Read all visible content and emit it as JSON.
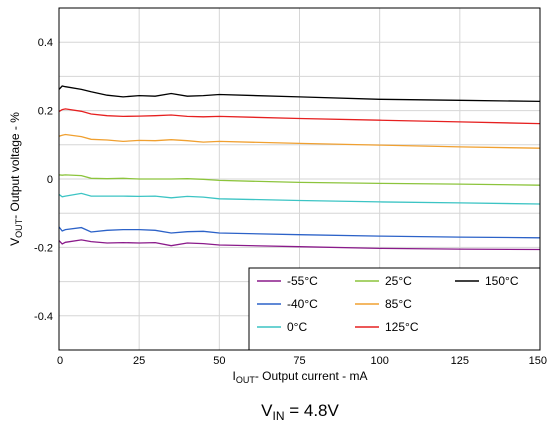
{
  "chart_data": {
    "type": "line",
    "title": "",
    "xlim": [
      0,
      150
    ],
    "ylim": [
      -0.5,
      0.5
    ],
    "x_ticks": [
      "0",
      "25",
      "50",
      "75",
      "100",
      "125",
      "150"
    ],
    "y_ticks": [
      "-0.4",
      "-0.2",
      "0",
      "0.2",
      "0.4"
    ],
    "grid": true,
    "legend_position": "bottom-right",
    "xlabel": {
      "main": "I",
      "sub": "OUT",
      "rest": "- Output current - mA"
    },
    "ylabel": {
      "main": "V",
      "sub": "OUT",
      "rest": "- Output voltage - %"
    },
    "condition": {
      "main": "V",
      "sub": "IN",
      "rest": " = 4.8V"
    },
    "series": [
      {
        "name": "-55°C",
        "color": "#8a1a8a",
        "x": [
          0,
          1,
          2,
          7,
          10,
          15,
          20,
          25,
          30,
          35,
          40,
          45,
          50,
          75,
          100,
          125,
          150
        ],
        "y": [
          -0.18,
          -0.19,
          -0.185,
          -0.178,
          -0.183,
          -0.187,
          -0.186,
          -0.187,
          -0.186,
          -0.195,
          -0.187,
          -0.189,
          -0.193,
          -0.198,
          -0.203,
          -0.205,
          -0.206
        ]
      },
      {
        "name": "-40°C",
        "color": "#2c62c8",
        "x": [
          0,
          1,
          2,
          7,
          10,
          15,
          20,
          25,
          30,
          35,
          40,
          45,
          50,
          75,
          100,
          125,
          150
        ],
        "y": [
          -0.14,
          -0.152,
          -0.148,
          -0.142,
          -0.155,
          -0.15,
          -0.148,
          -0.148,
          -0.15,
          -0.158,
          -0.154,
          -0.153,
          -0.158,
          -0.163,
          -0.167,
          -0.17,
          -0.172
        ]
      },
      {
        "name": "0°C",
        "color": "#3cc4c4",
        "x": [
          0,
          1,
          2,
          7,
          10,
          15,
          20,
          25,
          30,
          35,
          40,
          45,
          50,
          75,
          100,
          125,
          150
        ],
        "y": [
          -0.045,
          -0.052,
          -0.05,
          -0.042,
          -0.05,
          -0.05,
          -0.05,
          -0.051,
          -0.05,
          -0.055,
          -0.051,
          -0.053,
          -0.058,
          -0.063,
          -0.067,
          -0.07,
          -0.073
        ]
      },
      {
        "name": "25°C",
        "color": "#8cc43c",
        "x": [
          0,
          1,
          2,
          7,
          10,
          15,
          20,
          25,
          30,
          35,
          40,
          45,
          50,
          75,
          100,
          125,
          150
        ],
        "y": [
          0.012,
          0.011,
          0.012,
          0.01,
          0.002,
          0.001,
          0.002,
          0.0,
          0.0,
          0.0,
          0.001,
          -0.001,
          -0.004,
          -0.01,
          -0.013,
          -0.015,
          -0.018
        ]
      },
      {
        "name": "85°C",
        "color": "#f0a030",
        "x": [
          0,
          1,
          2,
          7,
          10,
          15,
          20,
          25,
          30,
          35,
          40,
          45,
          50,
          75,
          100,
          125,
          150
        ],
        "y": [
          0.125,
          0.128,
          0.13,
          0.124,
          0.116,
          0.114,
          0.11,
          0.113,
          0.112,
          0.115,
          0.112,
          0.108,
          0.11,
          0.104,
          0.099,
          0.094,
          0.09
        ]
      },
      {
        "name": "125°C",
        "color": "#e62020",
        "x": [
          0,
          1,
          2,
          7,
          10,
          15,
          20,
          25,
          30,
          35,
          40,
          45,
          50,
          75,
          100,
          125,
          150
        ],
        "y": [
          0.197,
          0.203,
          0.205,
          0.198,
          0.19,
          0.185,
          0.183,
          0.184,
          0.185,
          0.187,
          0.183,
          0.182,
          0.183,
          0.177,
          0.172,
          0.167,
          0.162
        ]
      },
      {
        "name": "150°C",
        "color": "#000000",
        "x": [
          0,
          1,
          2,
          7,
          10,
          15,
          20,
          25,
          30,
          35,
          40,
          45,
          50,
          75,
          100,
          125,
          150
        ],
        "y": [
          0.262,
          0.272,
          0.27,
          0.262,
          0.255,
          0.245,
          0.24,
          0.244,
          0.242,
          0.25,
          0.242,
          0.244,
          0.247,
          0.24,
          0.233,
          0.23,
          0.227
        ]
      }
    ]
  }
}
